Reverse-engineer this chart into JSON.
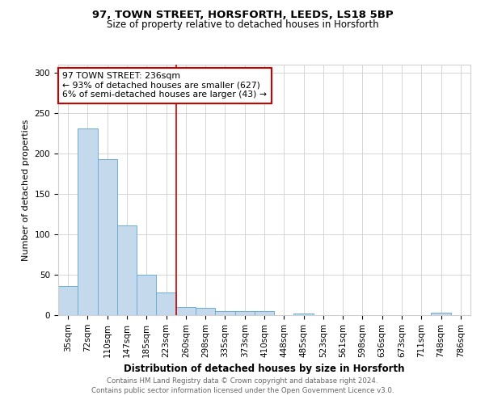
{
  "title1": "97, TOWN STREET, HORSFORTH, LEEDS, LS18 5BP",
  "title2": "Size of property relative to detached houses in Horsforth",
  "xlabel": "Distribution of detached houses by size in Horsforth",
  "ylabel": "Number of detached properties",
  "categories": [
    "35sqm",
    "72sqm",
    "110sqm",
    "147sqm",
    "185sqm",
    "223sqm",
    "260sqm",
    "298sqm",
    "335sqm",
    "373sqm",
    "410sqm",
    "448sqm",
    "485sqm",
    "523sqm",
    "561sqm",
    "598sqm",
    "636sqm",
    "673sqm",
    "711sqm",
    "748sqm",
    "786sqm"
  ],
  "values": [
    36,
    231,
    193,
    111,
    50,
    28,
    10,
    9,
    5,
    5,
    5,
    0,
    2,
    0,
    0,
    0,
    0,
    0,
    0,
    3,
    0
  ],
  "bar_color": "#c5d9ed",
  "bar_edge_color": "#6baed6",
  "property_line_x": 5.5,
  "annotation_text1": "97 TOWN STREET: 236sqm",
  "annotation_text2": "← 93% of detached houses are smaller (627)",
  "annotation_text3": "6% of semi-detached houses are larger (43) →",
  "annotation_box_color": "#ffffff",
  "annotation_border_color": "#cc0000",
  "line_color": "#cc0000",
  "footer1": "Contains HM Land Registry data © Crown copyright and database right 2024.",
  "footer2": "Contains public sector information licensed under the Open Government Licence v3.0.",
  "ylim": [
    0,
    310
  ],
  "yticks": [
    0,
    50,
    100,
    150,
    200,
    250,
    300
  ],
  "grid_color": "#d0d0d0",
  "title1_fontsize": 9.5,
  "title2_fontsize": 8.5,
  "xlabel_fontsize": 8.5,
  "ylabel_fontsize": 8.0,
  "tick_fontsize": 7.5,
  "footer_fontsize": 6.2,
  "annot_fontsize": 7.8
}
